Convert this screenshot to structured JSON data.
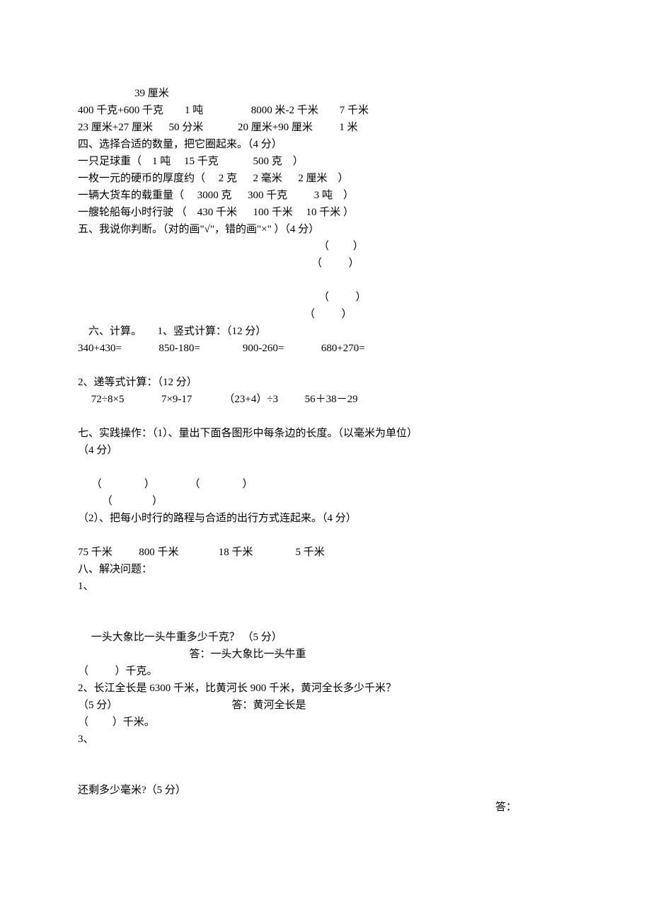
{
  "top_line": "39 厘米",
  "line2": "400 千克+600 千克        1 吨                  8000 米-2 千米        7 千米",
  "line3": "23 厘米+27 厘米      50 分米             20 厘米+90 厘米          1 米",
  "sec4_title": "四、选择合适的数量，把它圈起来。（4 分）",
  "sec4_q1": "一只足球重（    1 吨     15 千克             500 克    ）",
  "sec4_q2": "一枚一元的硬币的厚度约（     2 克      2 毫米      2 厘米    ）",
  "sec4_q3": "一辆大货车的载重量（     3000 克      300 千克          3 吨    ）",
  "sec4_q4": "一艘轮船每小时行驶 （    430 千米      100 千米     10 千米 ）",
  "sec5_title": "五、我说你判断。（对的画\"√\"，错的画\"×\" ）（4 分）",
  "paren_blank_1": "（         ）",
  "paren_blank_2": "（          ）",
  "paren_blank_3": "（          ）",
  "paren_blank_4": "（          ）",
  "sec6_title": "    六、计算。      1、竖式计算：（12 分）",
  "sec6_line1": "340+430=              850-180=                900-260=              680+270=",
  "sec6_sub2": "2、递等式计算：（12 分）",
  "sec6_line2": "     72÷8×5              7×9-17            （23+4）÷3          56＋38－29",
  "sec7_title": "七、实践操作：（1）、量出下面各图形中每条边的长度。（以毫米为单位）",
  "sec7_points": "（4 分）",
  "sec7_row1": "     （                ）             （                ）",
  "sec7_row2": "         （               ）",
  "sec7_sub2": "（2）、把每小时行的路程与合适的出行方式连起来。（4 分）",
  "sec7_line_values": "75 千米          800 千米               18 千米                5 千米",
  "sec8_title": "八、解决问题：",
  "sec8_q1_num": "1、",
  "sec8_q1_text": "     一头大象比一头牛重多少千克？ （5 分）",
  "sec8_q1_ans1": "                                          答：一头大象比一头牛重",
  "sec8_q1_ans2": "（          ）千克。",
  "sec8_q2": "2、长江全长是 6300 千米，比黄河长 900 千米，黄河全长多少千米？",
  "sec8_q2_pts": "（5 分）                                           答：黄河全长是",
  "sec8_q2_ans": "（         ）千米。",
  "sec8_q3_num": "3、",
  "sec8_q3_text": "还剩多少毫米?（5 分）",
  "sec8_q3_ans": "答："
}
